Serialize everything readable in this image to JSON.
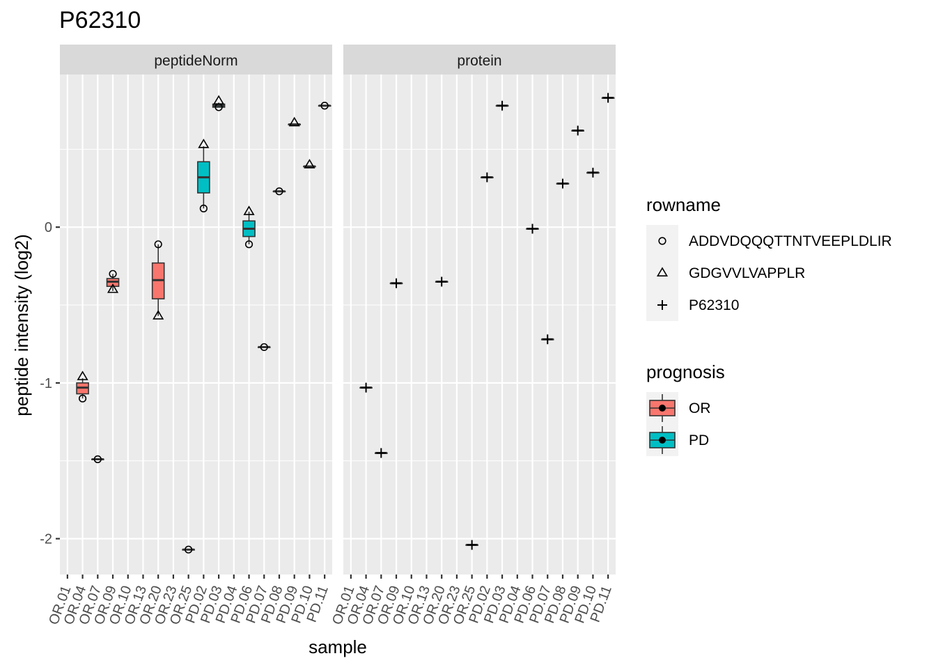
{
  "chart_data": {
    "type": "boxplot",
    "title": "P62310",
    "xlabel": "sample",
    "ylabel": "peptide intensity (log2)",
    "ylim": [
      -2.23,
      0.98
    ],
    "yticks": [
      0,
      -1,
      -2
    ],
    "ytick_labels": [
      "0",
      "-1",
      "-2"
    ],
    "grid": true,
    "categories": [
      "OR.01",
      "OR.04",
      "OR.07",
      "OR.09",
      "OR.10",
      "OR.13",
      "OR.20",
      "OR.23",
      "OR.25",
      "PD.02",
      "PD.03",
      "PD.04",
      "PD.06",
      "PD.07",
      "PD.08",
      "PD.09",
      "PD.10",
      "PD.11"
    ],
    "groups": [
      "OR",
      "OR",
      "OR",
      "OR",
      "OR",
      "OR",
      "OR",
      "OR",
      "OR",
      "PD",
      "PD",
      "PD",
      "PD",
      "PD",
      "PD",
      "PD",
      "PD",
      "PD"
    ],
    "panels": [
      {
        "title": "peptideNorm",
        "boxes": [
          {
            "sample": "OR.04",
            "group": "OR",
            "min": -1.1,
            "q1": -1.07,
            "median": -1.03,
            "q3": -1.0,
            "max": -0.97
          },
          {
            "sample": "OR.07",
            "group": "OR",
            "min": -1.49,
            "q1": -1.49,
            "median": -1.49,
            "q3": -1.49,
            "max": -1.49
          },
          {
            "sample": "OR.09",
            "group": "OR",
            "min": -0.41,
            "q1": -0.38,
            "median": -0.35,
            "q3": -0.33,
            "max": -0.3
          },
          {
            "sample": "OR.20",
            "group": "OR",
            "min": -0.57,
            "q1": -0.46,
            "median": -0.34,
            "q3": -0.23,
            "max": -0.11
          },
          {
            "sample": "OR.25",
            "group": "OR",
            "min": -2.07,
            "q1": -2.07,
            "median": -2.07,
            "q3": -2.07,
            "max": -2.07
          },
          {
            "sample": "PD.02",
            "group": "PD",
            "min": 0.12,
            "q1": 0.22,
            "median": 0.32,
            "q3": 0.42,
            "max": 0.52
          },
          {
            "sample": "PD.03",
            "group": "PD",
            "min": 0.77,
            "q1": 0.77,
            "median": 0.78,
            "q3": 0.79,
            "max": 0.8
          },
          {
            "sample": "PD.06",
            "group": "PD",
            "min": -0.11,
            "q1": -0.06,
            "median": -0.01,
            "q3": 0.04,
            "max": 0.1
          },
          {
            "sample": "PD.07",
            "group": "PD",
            "min": -0.77,
            "q1": -0.77,
            "median": -0.77,
            "q3": -0.77,
            "max": -0.77
          },
          {
            "sample": "PD.08",
            "group": "PD",
            "min": 0.23,
            "q1": 0.23,
            "median": 0.23,
            "q3": 0.23,
            "max": 0.23
          },
          {
            "sample": "PD.09",
            "group": "PD",
            "min": 0.66,
            "q1": 0.66,
            "median": 0.66,
            "q3": 0.66,
            "max": 0.66
          },
          {
            "sample": "PD.10",
            "group": "PD",
            "min": 0.39,
            "q1": 0.39,
            "median": 0.39,
            "q3": 0.39,
            "max": 0.39
          },
          {
            "sample": "PD.11",
            "group": "PD",
            "min": 0.78,
            "q1": 0.78,
            "median": 0.78,
            "q3": 0.78,
            "max": 0.78
          }
        ],
        "points": [
          {
            "sample": "OR.04",
            "rowname": "ADDVDQQQTTNTVEEPLDLIR",
            "value": -1.1
          },
          {
            "sample": "OR.04",
            "rowname": "GDGVVLVAPPLR",
            "value": -0.96
          },
          {
            "sample": "OR.07",
            "rowname": "ADDVDQQQTTNTVEEPLDLIR",
            "value": -1.49
          },
          {
            "sample": "OR.09",
            "rowname": "ADDVDQQQTTNTVEEPLDLIR",
            "value": -0.3
          },
          {
            "sample": "OR.09",
            "rowname": "GDGVVLVAPPLR",
            "value": -0.4
          },
          {
            "sample": "OR.20",
            "rowname": "ADDVDQQQTTNTVEEPLDLIR",
            "value": -0.11
          },
          {
            "sample": "OR.20",
            "rowname": "GDGVVLVAPPLR",
            "value": -0.57
          },
          {
            "sample": "OR.25",
            "rowname": "ADDVDQQQTTNTVEEPLDLIR",
            "value": -2.07
          },
          {
            "sample": "PD.02",
            "rowname": "ADDVDQQQTTNTVEEPLDLIR",
            "value": 0.12
          },
          {
            "sample": "PD.02",
            "rowname": "GDGVVLVAPPLR",
            "value": 0.53
          },
          {
            "sample": "PD.03",
            "rowname": "ADDVDQQQTTNTVEEPLDLIR",
            "value": 0.77
          },
          {
            "sample": "PD.03",
            "rowname": "GDGVVLVAPPLR",
            "value": 0.81
          },
          {
            "sample": "PD.06",
            "rowname": "ADDVDQQQTTNTVEEPLDLIR",
            "value": -0.11
          },
          {
            "sample": "PD.06",
            "rowname": "GDGVVLVAPPLR",
            "value": 0.1
          },
          {
            "sample": "PD.07",
            "rowname": "ADDVDQQQTTNTVEEPLDLIR",
            "value": -0.77
          },
          {
            "sample": "PD.08",
            "rowname": "ADDVDQQQTTNTVEEPLDLIR",
            "value": 0.23
          },
          {
            "sample": "PD.09",
            "rowname": "GDGVVLVAPPLR",
            "value": 0.67
          },
          {
            "sample": "PD.10",
            "rowname": "GDGVVLVAPPLR",
            "value": 0.4
          },
          {
            "sample": "PD.11",
            "rowname": "ADDVDQQQTTNTVEEPLDLIR",
            "value": 0.78
          }
        ]
      },
      {
        "title": "protein",
        "boxes": [
          {
            "sample": "OR.04",
            "group": "OR",
            "min": -1.03,
            "q1": -1.03,
            "median": -1.03,
            "q3": -1.03,
            "max": -1.03
          },
          {
            "sample": "OR.07",
            "group": "OR",
            "min": -1.45,
            "q1": -1.45,
            "median": -1.45,
            "q3": -1.45,
            "max": -1.45
          },
          {
            "sample": "OR.09",
            "group": "OR",
            "min": -0.36,
            "q1": -0.36,
            "median": -0.36,
            "q3": -0.36,
            "max": -0.36
          },
          {
            "sample": "OR.20",
            "group": "OR",
            "min": -0.35,
            "q1": -0.35,
            "median": -0.35,
            "q3": -0.35,
            "max": -0.35
          },
          {
            "sample": "OR.25",
            "group": "OR",
            "min": -2.04,
            "q1": -2.04,
            "median": -2.04,
            "q3": -2.04,
            "max": -2.04
          },
          {
            "sample": "PD.02",
            "group": "PD",
            "min": 0.32,
            "q1": 0.32,
            "median": 0.32,
            "q3": 0.32,
            "max": 0.32
          },
          {
            "sample": "PD.03",
            "group": "PD",
            "min": 0.78,
            "q1": 0.78,
            "median": 0.78,
            "q3": 0.78,
            "max": 0.78
          },
          {
            "sample": "PD.06",
            "group": "PD",
            "min": -0.01,
            "q1": -0.01,
            "median": -0.01,
            "q3": -0.01,
            "max": -0.01
          },
          {
            "sample": "PD.07",
            "group": "PD",
            "min": -0.72,
            "q1": -0.72,
            "median": -0.72,
            "q3": -0.72,
            "max": -0.72
          },
          {
            "sample": "PD.08",
            "group": "PD",
            "min": 0.28,
            "q1": 0.28,
            "median": 0.28,
            "q3": 0.28,
            "max": 0.28
          },
          {
            "sample": "PD.09",
            "group": "PD",
            "min": 0.62,
            "q1": 0.62,
            "median": 0.62,
            "q3": 0.62,
            "max": 0.62
          },
          {
            "sample": "PD.10",
            "group": "PD",
            "min": 0.35,
            "q1": 0.35,
            "median": 0.35,
            "q3": 0.35,
            "max": 0.35
          },
          {
            "sample": "PD.11",
            "group": "PD",
            "min": 0.83,
            "q1": 0.83,
            "median": 0.83,
            "q3": 0.83,
            "max": 0.83
          }
        ],
        "points": [
          {
            "sample": "OR.04",
            "rowname": "P62310",
            "value": -1.03
          },
          {
            "sample": "OR.07",
            "rowname": "P62310",
            "value": -1.45
          },
          {
            "sample": "OR.09",
            "rowname": "P62310",
            "value": -0.36
          },
          {
            "sample": "OR.20",
            "rowname": "P62310",
            "value": -0.35
          },
          {
            "sample": "OR.25",
            "rowname": "P62310",
            "value": -2.04
          },
          {
            "sample": "PD.02",
            "rowname": "P62310",
            "value": 0.32
          },
          {
            "sample": "PD.03",
            "rowname": "P62310",
            "value": 0.78
          },
          {
            "sample": "PD.06",
            "rowname": "P62310",
            "value": -0.01
          },
          {
            "sample": "PD.07",
            "rowname": "P62310",
            "value": -0.72
          },
          {
            "sample": "PD.08",
            "rowname": "P62310",
            "value": 0.28
          },
          {
            "sample": "PD.09",
            "rowname": "P62310",
            "value": 0.62
          },
          {
            "sample": "PD.10",
            "rowname": "P62310",
            "value": 0.35
          },
          {
            "sample": "PD.11",
            "rowname": "P62310",
            "value": 0.83
          }
        ]
      }
    ],
    "legends": [
      {
        "title": "rowname",
        "entries": [
          {
            "label": "ADDVDQQQTTNTVEEPLDLIR",
            "shape": "circle"
          },
          {
            "label": "GDGVVLVAPPLR",
            "shape": "triangle"
          },
          {
            "label": "P62310",
            "shape": "plus"
          }
        ]
      },
      {
        "title": "prognosis",
        "entries": [
          {
            "label": "OR",
            "color": "#F8766D"
          },
          {
            "label": "PD",
            "color": "#00BFC4"
          }
        ]
      }
    ],
    "legend_position": "right"
  }
}
